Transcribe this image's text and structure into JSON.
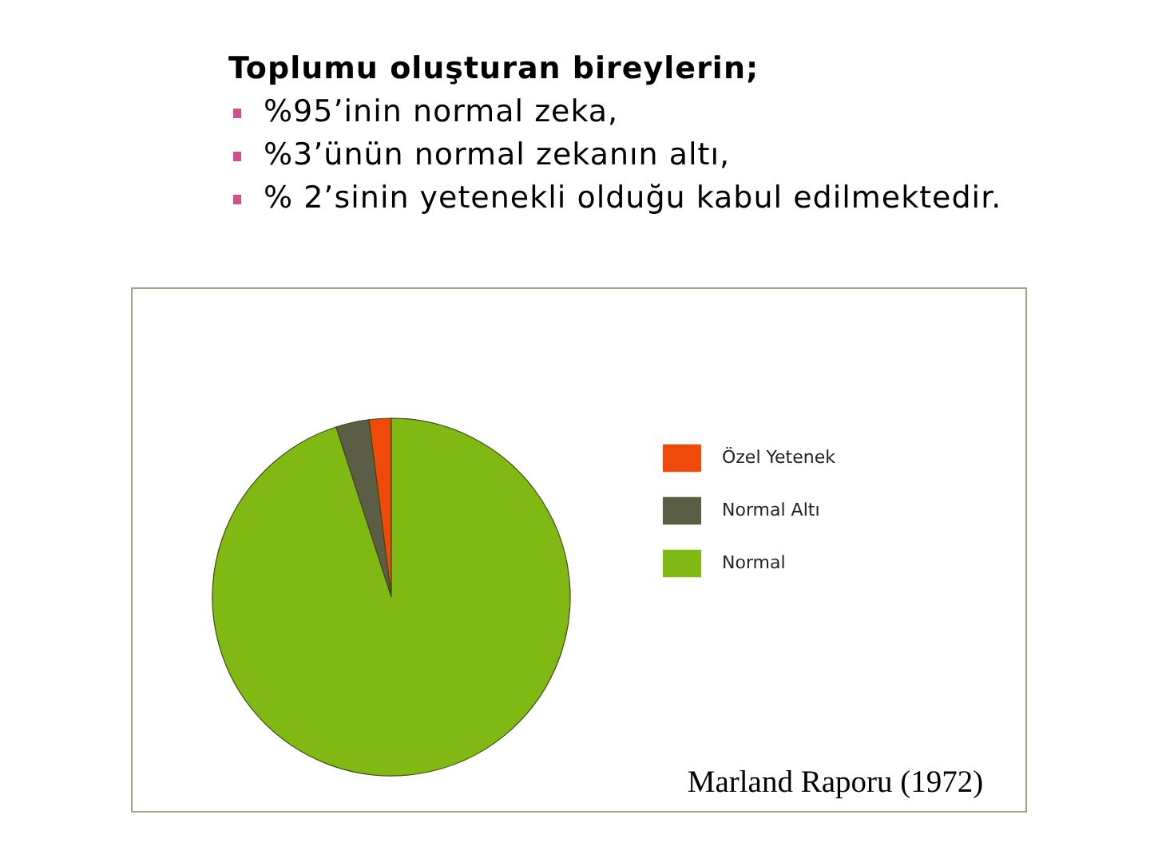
{
  "chart_data": {
    "type": "pie",
    "title": "Toplumu oluşturan bireylerin;",
    "subtitle": "%95’inin normal zeka,\n%3’ünün normal zekanın altı,\n% 2’sinin yetenekli olduğu kabul edilmektedir.",
    "categories": [
      "Özel Yetenek",
      "Normal Altı",
      "Normal"
    ],
    "values": [
      2,
      3,
      95
    ],
    "colors": [
      "#f04a0a",
      "#5b5d45",
      "#80b814"
    ],
    "legend": "right",
    "annotations": [
      "Marland Raporu (1972)"
    ]
  }
}
